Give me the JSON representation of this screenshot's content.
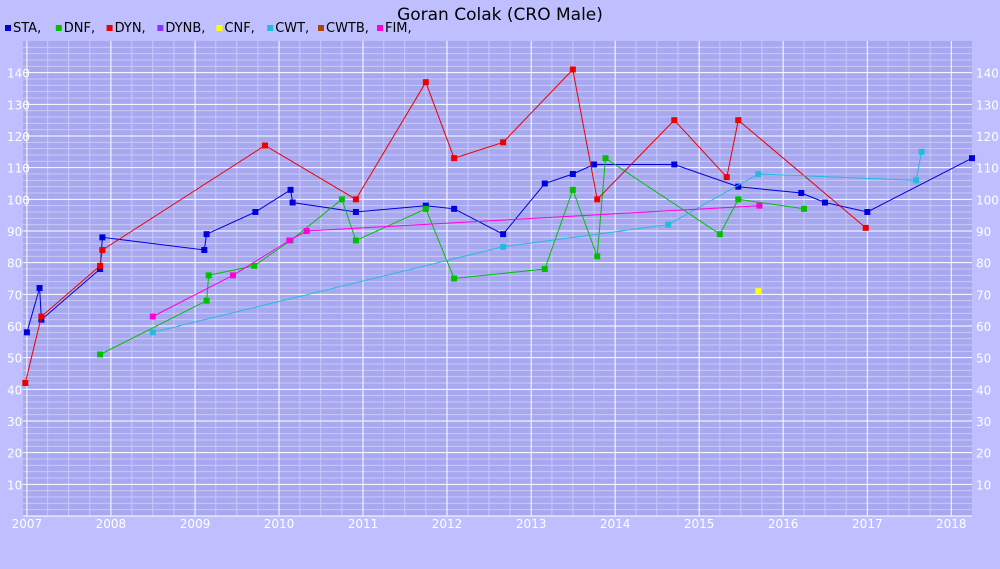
{
  "colors": {
    "background": "#bfbfff",
    "plot_background": "#a8a8f0",
    "grid_major": "#ffffff",
    "grid_minor": "#c8c8f8"
  },
  "chart_data": {
    "type": "line",
    "title": "Goran Colak (CRO Male)",
    "xlabel": "",
    "ylabel": "",
    "x_axis": "date",
    "xlim": [
      "2006-12-15",
      "2018-04-01"
    ],
    "ylim": [
      0,
      150
    ],
    "x_ticks": [
      "2007",
      "2008",
      "2009",
      "2010",
      "2011",
      "2012",
      "2013",
      "2014",
      "2015",
      "2016",
      "2017",
      "2018"
    ],
    "y_ticks": [
      10,
      20,
      30,
      40,
      50,
      60,
      70,
      80,
      90,
      100,
      110,
      120,
      130,
      140
    ],
    "grid": true,
    "legend_position": "top-left",
    "series": [
      {
        "name": "STA",
        "color": "#0000dd",
        "connected": true,
        "points": [
          [
            "2007-01-01",
            58
          ],
          [
            "2007-02-25",
            72
          ],
          [
            "2007-03-05",
            62
          ],
          [
            "2007-11-15",
            78
          ],
          [
            "2007-11-25",
            88
          ],
          [
            "2009-02-10",
            84
          ],
          [
            "2009-02-20",
            89
          ],
          [
            "2009-09-20",
            96
          ],
          [
            "2010-02-20",
            103
          ],
          [
            "2010-03-01",
            99
          ],
          [
            "2010-12-01",
            96
          ],
          [
            "2011-10-01",
            98
          ],
          [
            "2012-02-01",
            97
          ],
          [
            "2012-09-01",
            89
          ],
          [
            "2013-03-01",
            105
          ],
          [
            "2013-07-01",
            108
          ],
          [
            "2013-10-01",
            111
          ],
          [
            "2014-09-15",
            111
          ],
          [
            "2015-06-20",
            104
          ],
          [
            "2016-03-20",
            102
          ],
          [
            "2016-07-01",
            99
          ],
          [
            "2017-01-01",
            96
          ],
          [
            "2018-04-01",
            113
          ]
        ]
      },
      {
        "name": "DNF",
        "color": "#00c000",
        "connected": true,
        "points": [
          [
            "2007-11-15",
            51
          ],
          [
            "2009-02-20",
            68
          ],
          [
            "2009-03-01",
            76
          ],
          [
            "2009-09-15",
            79
          ],
          [
            "2010-02-20",
            87
          ],
          [
            "2010-10-01",
            100
          ],
          [
            "2010-12-01",
            87
          ],
          [
            "2011-10-01",
            97
          ],
          [
            "2012-02-01",
            75
          ],
          [
            "2013-03-01",
            78
          ],
          [
            "2013-07-01",
            103
          ],
          [
            "2013-10-15",
            82
          ],
          [
            "2013-11-20",
            113
          ],
          [
            "2015-04-01",
            89
          ],
          [
            "2015-06-20",
            100
          ],
          [
            "2016-04-01",
            97
          ]
        ]
      },
      {
        "name": "DYN",
        "color": "#ee0000",
        "connected": true,
        "points": [
          [
            "2006-12-25",
            42
          ],
          [
            "2007-03-05",
            63
          ],
          [
            "2007-11-15",
            79
          ],
          [
            "2007-11-25",
            84
          ],
          [
            "2009-11-01",
            117
          ],
          [
            "2010-12-01",
            100
          ],
          [
            "2011-10-01",
            137
          ],
          [
            "2012-02-01",
            113
          ],
          [
            "2012-09-01",
            118
          ],
          [
            "2013-07-01",
            141
          ],
          [
            "2013-10-15",
            100
          ],
          [
            "2014-09-15",
            125
          ],
          [
            "2015-05-01",
            107
          ],
          [
            "2015-06-20",
            125
          ],
          [
            "2016-12-25",
            91
          ]
        ]
      },
      {
        "name": "DYNB",
        "color": "#8833ff",
        "connected": true,
        "points": []
      },
      {
        "name": "CNF",
        "color": "#ffff00",
        "connected": false,
        "points": [
          [
            "2015-09-15",
            71
          ]
        ]
      },
      {
        "name": "CWT",
        "color": "#22bbdd",
        "connected": true,
        "points": [
          [
            "2008-07-01",
            58
          ],
          [
            "2012-09-01",
            85
          ],
          [
            "2014-08-20",
            92
          ],
          [
            "2015-09-15",
            108
          ],
          [
            "2017-08-01",
            106
          ],
          [
            "2017-08-25",
            115
          ]
        ]
      },
      {
        "name": "CWTB",
        "color": "#aa4400",
        "connected": true,
        "points": []
      },
      {
        "name": "FIM",
        "color": "#ff00dd",
        "connected": true,
        "points": [
          [
            "2008-07-01",
            63
          ],
          [
            "2009-06-15",
            76
          ],
          [
            "2010-02-15",
            87
          ],
          [
            "2010-05-01",
            90
          ],
          [
            "2015-09-20",
            98
          ]
        ]
      }
    ]
  }
}
